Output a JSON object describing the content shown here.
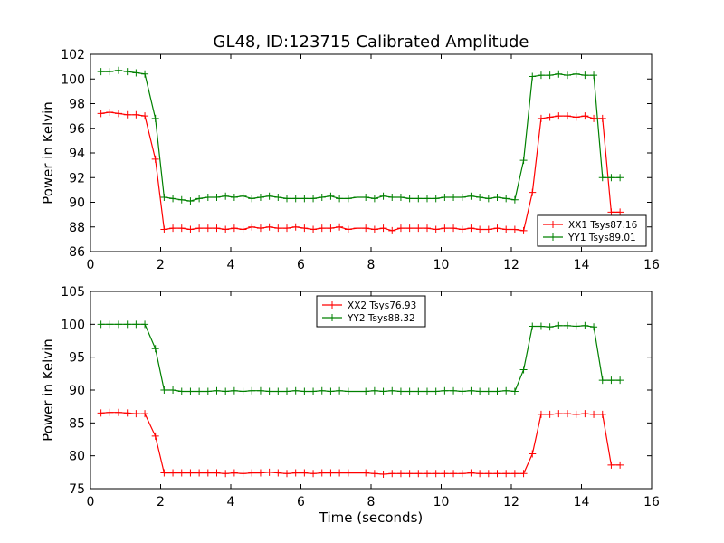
{
  "title": "GL48, ID:123715 Calibrated Amplitude",
  "chart_data": [
    {
      "type": "line",
      "ylabel": "Power in Kelvin",
      "xlabel": "",
      "xlim": [
        0,
        16
      ],
      "ylim": [
        86,
        102
      ],
      "xticks": [
        0,
        2,
        4,
        6,
        8,
        10,
        12,
        14,
        16
      ],
      "yticks": [
        86,
        88,
        90,
        92,
        94,
        96,
        98,
        100,
        102
      ],
      "legend_position": "lower-right",
      "series": [
        {
          "name": "XX1 Tsys87.16",
          "color": "#ff0000",
          "x": [
            0.3,
            0.55,
            0.8,
            1.05,
            1.3,
            1.55,
            1.85,
            2.1,
            2.35,
            2.6,
            2.85,
            3.1,
            3.35,
            3.6,
            3.85,
            4.1,
            4.35,
            4.6,
            4.85,
            5.1,
            5.35,
            5.6,
            5.85,
            6.1,
            6.35,
            6.6,
            6.85,
            7.1,
            7.35,
            7.6,
            7.85,
            8.1,
            8.35,
            8.6,
            8.85,
            9.1,
            9.35,
            9.6,
            9.85,
            10.1,
            10.35,
            10.6,
            10.85,
            11.1,
            11.35,
            11.6,
            11.85,
            12.1,
            12.35,
            12.6,
            12.85,
            13.1,
            13.35,
            13.6,
            13.85,
            14.1,
            14.35,
            14.6,
            14.85,
            15.1
          ],
          "y": [
            97.2,
            97.3,
            97.2,
            97.1,
            97.1,
            97.0,
            93.5,
            87.8,
            87.9,
            87.9,
            87.8,
            87.9,
            87.9,
            87.9,
            87.8,
            87.9,
            87.8,
            88.0,
            87.9,
            88.0,
            87.9,
            87.9,
            88.0,
            87.9,
            87.8,
            87.9,
            87.9,
            88.0,
            87.8,
            87.9,
            87.9,
            87.8,
            87.9,
            87.7,
            87.9,
            87.9,
            87.9,
            87.9,
            87.8,
            87.9,
            87.9,
            87.8,
            87.9,
            87.8,
            87.8,
            87.9,
            87.8,
            87.8,
            87.7,
            90.8,
            96.8,
            96.9,
            97.0,
            97.0,
            96.9,
            97.0,
            96.8,
            96.8,
            89.2,
            89.2
          ]
        },
        {
          "name": "YY1 Tsys89.01",
          "color": "#008000",
          "x": [
            0.3,
            0.55,
            0.8,
            1.05,
            1.3,
            1.55,
            1.85,
            2.1,
            2.35,
            2.6,
            2.85,
            3.1,
            3.35,
            3.6,
            3.85,
            4.1,
            4.35,
            4.6,
            4.85,
            5.1,
            5.35,
            5.6,
            5.85,
            6.1,
            6.35,
            6.6,
            6.85,
            7.1,
            7.35,
            7.6,
            7.85,
            8.1,
            8.35,
            8.6,
            8.85,
            9.1,
            9.35,
            9.6,
            9.85,
            10.1,
            10.35,
            10.6,
            10.85,
            11.1,
            11.35,
            11.6,
            11.85,
            12.1,
            12.35,
            12.6,
            12.85,
            13.1,
            13.35,
            13.6,
            13.85,
            14.1,
            14.35,
            14.6,
            14.85,
            15.1
          ],
          "y": [
            100.6,
            100.6,
            100.7,
            100.6,
            100.5,
            100.4,
            96.8,
            90.4,
            90.3,
            90.2,
            90.1,
            90.3,
            90.4,
            90.4,
            90.5,
            90.4,
            90.5,
            90.3,
            90.4,
            90.5,
            90.4,
            90.3,
            90.3,
            90.3,
            90.3,
            90.4,
            90.5,
            90.3,
            90.3,
            90.4,
            90.4,
            90.3,
            90.5,
            90.4,
            90.4,
            90.3,
            90.3,
            90.3,
            90.3,
            90.4,
            90.4,
            90.4,
            90.5,
            90.4,
            90.3,
            90.4,
            90.3,
            90.2,
            93.4,
            100.2,
            100.3,
            100.3,
            100.4,
            100.3,
            100.4,
            100.3,
            100.3,
            92.0,
            92.0,
            92.0
          ]
        }
      ]
    },
    {
      "type": "line",
      "ylabel": "Power in Kelvin",
      "xlabel": "Time (seconds)",
      "xlim": [
        0,
        16
      ],
      "ylim": [
        75,
        105
      ],
      "xticks": [
        0,
        2,
        4,
        6,
        8,
        10,
        12,
        14,
        16
      ],
      "yticks": [
        75,
        80,
        85,
        90,
        95,
        100,
        105
      ],
      "legend_position": "upper-center",
      "series": [
        {
          "name": "XX2 Tsys76.93",
          "color": "#ff0000",
          "x": [
            0.3,
            0.55,
            0.8,
            1.05,
            1.3,
            1.55,
            1.85,
            2.1,
            2.35,
            2.6,
            2.85,
            3.1,
            3.35,
            3.6,
            3.85,
            4.1,
            4.35,
            4.6,
            4.85,
            5.1,
            5.35,
            5.6,
            5.85,
            6.1,
            6.35,
            6.6,
            6.85,
            7.1,
            7.35,
            7.6,
            7.85,
            8.1,
            8.35,
            8.6,
            8.85,
            9.1,
            9.35,
            9.6,
            9.85,
            10.1,
            10.35,
            10.6,
            10.85,
            11.1,
            11.35,
            11.6,
            11.85,
            12.1,
            12.35,
            12.6,
            12.85,
            13.1,
            13.35,
            13.6,
            13.85,
            14.1,
            14.35,
            14.6,
            14.85,
            15.1
          ],
          "y": [
            86.5,
            86.6,
            86.6,
            86.5,
            86.4,
            86.4,
            83.0,
            77.4,
            77.4,
            77.4,
            77.4,
            77.4,
            77.4,
            77.4,
            77.3,
            77.4,
            77.3,
            77.4,
            77.4,
            77.5,
            77.4,
            77.3,
            77.4,
            77.4,
            77.3,
            77.4,
            77.4,
            77.4,
            77.4,
            77.4,
            77.4,
            77.3,
            77.2,
            77.3,
            77.3,
            77.3,
            77.3,
            77.3,
            77.3,
            77.3,
            77.3,
            77.3,
            77.4,
            77.3,
            77.3,
            77.3,
            77.3,
            77.3,
            77.3,
            80.3,
            86.3,
            86.3,
            86.4,
            86.4,
            86.3,
            86.4,
            86.3,
            86.3,
            78.6,
            78.6
          ]
        },
        {
          "name": "YY2 Tsys88.32",
          "color": "#008000",
          "x": [
            0.3,
            0.55,
            0.8,
            1.05,
            1.3,
            1.55,
            1.85,
            2.1,
            2.35,
            2.6,
            2.85,
            3.1,
            3.35,
            3.6,
            3.85,
            4.1,
            4.35,
            4.6,
            4.85,
            5.1,
            5.35,
            5.6,
            5.85,
            6.1,
            6.35,
            6.6,
            6.85,
            7.1,
            7.35,
            7.6,
            7.85,
            8.1,
            8.35,
            8.6,
            8.85,
            9.1,
            9.35,
            9.6,
            9.85,
            10.1,
            10.35,
            10.6,
            10.85,
            11.1,
            11.35,
            11.6,
            11.85,
            12.1,
            12.35,
            12.6,
            12.85,
            13.1,
            13.35,
            13.6,
            13.85,
            14.1,
            14.35,
            14.6,
            14.85,
            15.1
          ],
          "y": [
            100.0,
            100.0,
            100.0,
            100.0,
            100.0,
            100.0,
            96.3,
            90.0,
            90.0,
            89.8,
            89.8,
            89.8,
            89.8,
            89.9,
            89.8,
            89.9,
            89.8,
            89.9,
            89.9,
            89.8,
            89.8,
            89.8,
            89.9,
            89.8,
            89.8,
            89.9,
            89.8,
            89.9,
            89.8,
            89.8,
            89.8,
            89.9,
            89.8,
            89.9,
            89.8,
            89.8,
            89.8,
            89.8,
            89.8,
            89.9,
            89.9,
            89.8,
            89.9,
            89.8,
            89.8,
            89.8,
            89.9,
            89.8,
            93.1,
            99.7,
            99.7,
            99.6,
            99.8,
            99.8,
            99.7,
            99.8,
            99.6,
            91.5,
            91.5,
            91.5
          ]
        }
      ]
    }
  ]
}
